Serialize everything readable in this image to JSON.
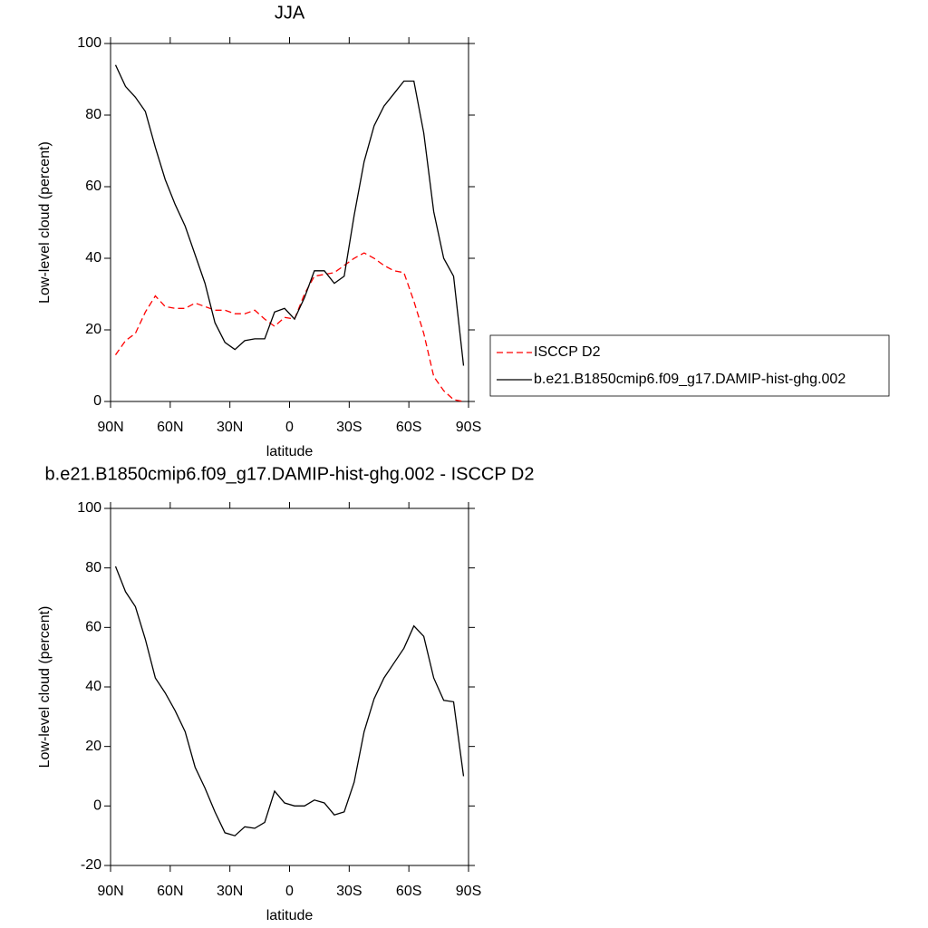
{
  "chart_data": [
    {
      "type": "line",
      "title": "JJA",
      "x_label": "latitude",
      "y_label": "Low-level cloud (percent)",
      "x": [
        87.5,
        82.5,
        77.5,
        72.5,
        67.5,
        62.5,
        57.5,
        52.5,
        47.5,
        42.5,
        37.5,
        32.5,
        27.5,
        22.5,
        17.5,
        12.5,
        7.5,
        2.5,
        -2.5,
        -7.5,
        -12.5,
        -17.5,
        -22.5,
        -27.5,
        -32.5,
        -37.5,
        -42.5,
        -47.5,
        -52.5,
        -57.5,
        -62.5,
        -67.5,
        -72.5,
        -77.5,
        -82.5,
        -87.5
      ],
      "series": [
        {
          "name": "ISCCP D2",
          "color": "#ff0000",
          "line_style": "dashed",
          "values": [
            13,
            17,
            19,
            25,
            29.5,
            26.5,
            26,
            26,
            27.5,
            26.5,
            25.5,
            25.5,
            24.5,
            24.5,
            25.5,
            23,
            21,
            23.5,
            23,
            30,
            35,
            35.5,
            36,
            38,
            40,
            41.5,
            40,
            38,
            36.5,
            36,
            28,
            19,
            7,
            3,
            0.5,
            0
          ]
        },
        {
          "name": "b.e21.B1850cmip6.f09_g17.DAMIP-hist-ghg.002",
          "color": "#000000",
          "line_style": "solid",
          "values": [
            94,
            88,
            85,
            81,
            71,
            62,
            55,
            49,
            41,
            33,
            22,
            16.5,
            14.5,
            17,
            17.5,
            17.5,
            25,
            26,
            23,
            29,
            36.5,
            36.5,
            33,
            35,
            52,
            67,
            77,
            82.5,
            86,
            89.5,
            89.5,
            75,
            53,
            40,
            35,
            10
          ]
        }
      ],
      "xlim": [
        90,
        -90
      ],
      "xticks": [
        {
          "value": 90,
          "label": "90N"
        },
        {
          "value": 60,
          "label": "60N"
        },
        {
          "value": 30,
          "label": "30N"
        },
        0,
        {
          "value": -30,
          "label": "30S"
        },
        {
          "value": -60,
          "label": "60S"
        },
        {
          "value": -90,
          "label": "90S"
        }
      ],
      "ylim": [
        0,
        100
      ],
      "yticks": [
        0,
        20,
        40,
        60,
        80,
        100
      ]
    },
    {
      "type": "line",
      "title": "b.e21.B1850cmip6.f09_g17.DAMIP-hist-ghg.002 - ISCCP D2",
      "x_label": "latitude",
      "y_label": "Low-level cloud (percent)",
      "x": [
        87.5,
        82.5,
        77.5,
        72.5,
        67.5,
        62.5,
        57.5,
        52.5,
        47.5,
        42.5,
        37.5,
        32.5,
        27.5,
        22.5,
        17.5,
        12.5,
        7.5,
        2.5,
        -2.5,
        -7.5,
        -12.5,
        -17.5,
        -22.5,
        -27.5,
        -32.5,
        -37.5,
        -42.5,
        -47.5,
        -52.5,
        -57.5,
        -62.5,
        -67.5,
        -72.5,
        -77.5,
        -82.5,
        -87.5
      ],
      "color": "#000000",
      "values": [
        80.5,
        72,
        67,
        56,
        43,
        38,
        32,
        25,
        13,
        6,
        -2,
        -9,
        -10,
        -7,
        -7.5,
        -5.5,
        5,
        1,
        0,
        0,
        2,
        1,
        -3,
        -2,
        8,
        25,
        36,
        43,
        48,
        53,
        60.5,
        57,
        43,
        35.5,
        35,
        10
      ],
      "xlim": [
        90,
        -90
      ],
      "xticks": [
        {
          "value": 90,
          "label": "90N"
        },
        {
          "value": 60,
          "label": "60N"
        },
        {
          "value": 30,
          "label": "30N"
        },
        0,
        {
          "value": -30,
          "label": "30S"
        },
        {
          "value": -60,
          "label": "60S"
        },
        {
          "value": -90,
          "label": "90S"
        }
      ],
      "ylim": [
        -20,
        100
      ],
      "yticks": [
        -20,
        0,
        20,
        40,
        60,
        80,
        100
      ]
    }
  ]
}
